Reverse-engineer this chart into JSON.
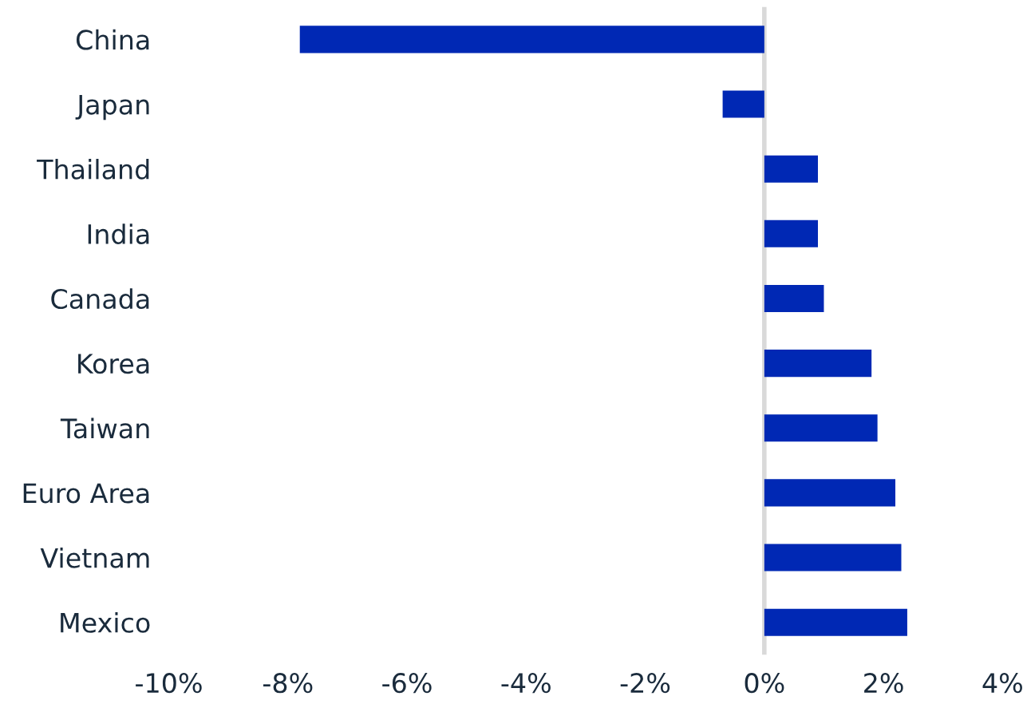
{
  "chart_data": {
    "type": "bar",
    "orientation": "horizontal",
    "categories": [
      "China",
      "Japan",
      "Thailand",
      "India",
      "Canada",
      "Korea",
      "Taiwan",
      "Euro Area",
      "Vietnam",
      "Mexico"
    ],
    "values": [
      -7.8,
      -0.7,
      0.9,
      0.9,
      1.0,
      1.8,
      1.9,
      2.2,
      2.3,
      2.4
    ],
    "color": "#0028b4",
    "xlim": [
      -10,
      4
    ],
    "xticks": [
      {
        "value": -10,
        "label": "-10%"
      },
      {
        "value": -8,
        "label": "-8%"
      },
      {
        "value": -6,
        "label": "-6%"
      },
      {
        "value": -4,
        "label": "-4%"
      },
      {
        "value": -2,
        "label": "-2%"
      },
      {
        "value": 0,
        "label": "0%"
      },
      {
        "value": 2,
        "label": "2%"
      },
      {
        "value": 4,
        "label": "4%"
      }
    ],
    "ref_lines": [
      {
        "axis": "x",
        "value": 0,
        "label": null,
        "color": "#d9d9d9"
      }
    ],
    "grid": false,
    "legend": false
  }
}
